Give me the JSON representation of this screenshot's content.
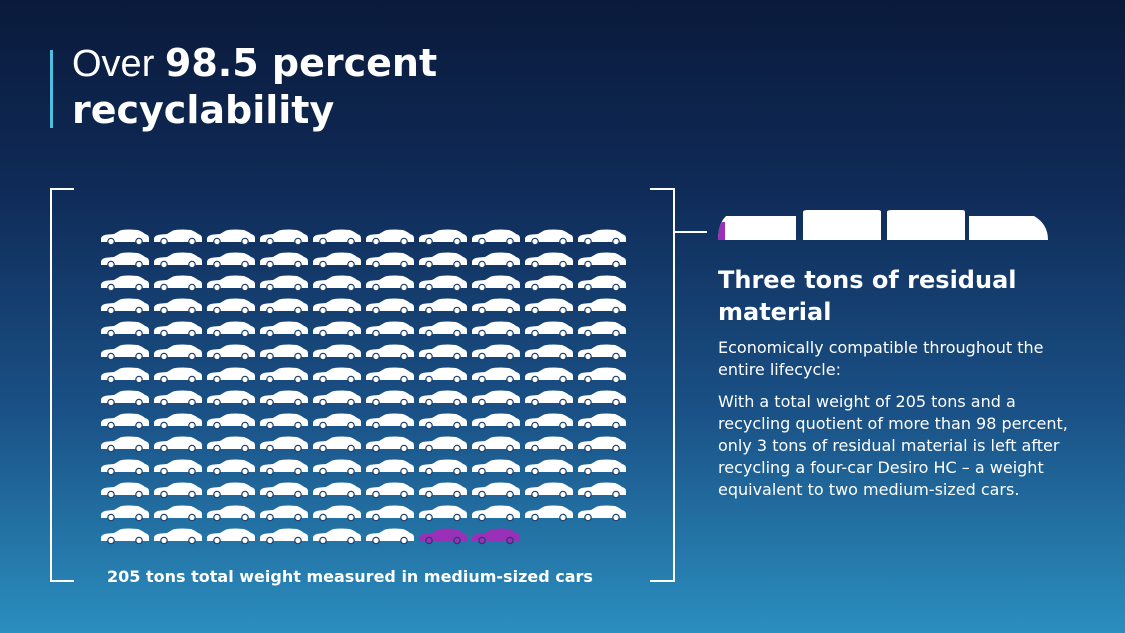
{
  "title": {
    "prefix": "Over ",
    "highlight": "98.5 percent",
    "line2": "recyclability"
  },
  "cars": {
    "total": 138,
    "columns": 10,
    "residual_count": 2,
    "car_color": "#ffffff",
    "residual_color": "#9b30b8"
  },
  "caption": "205 tons total weight measured in medium-sized cars",
  "info": {
    "heading": "Three tons of residual material",
    "paragraph1": "Economically compatible throughout the entire lifecycle:",
    "paragraph2": "With a total weight of 205 tons and a recycling quotient of more than 98 percent, only 3 tons of residual material is left after recycling a four-car Desiro HC – a weight equivalent to two medium-sized cars."
  },
  "train": {
    "car_count": 4,
    "color": "#ffffff",
    "residual_color": "#9b30b8"
  },
  "colors": {
    "accent": "#50bedf",
    "residual": "#9b30b8"
  }
}
